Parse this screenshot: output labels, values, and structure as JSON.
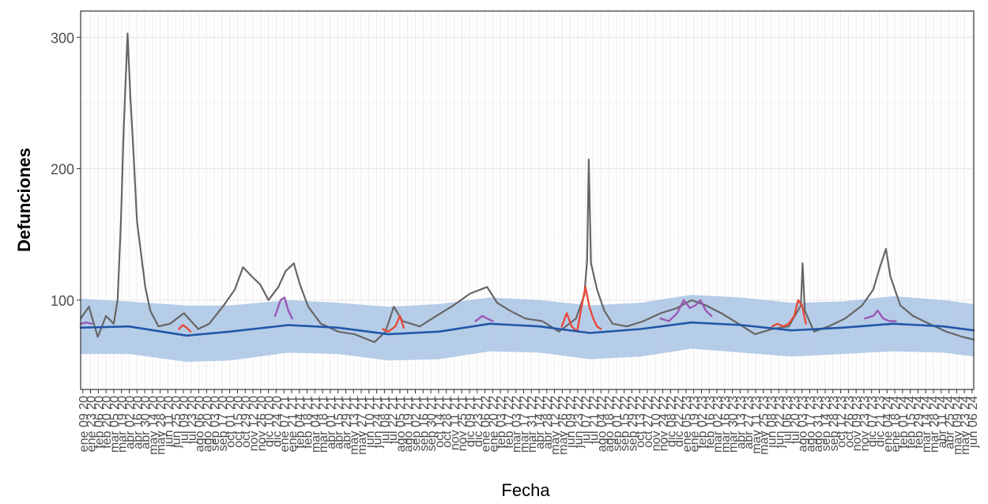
{
  "chart_data": {
    "type": "line",
    "title": "",
    "xlabel": "Fecha",
    "ylabel": "Defunciones",
    "x_range": [
      "2020-01-05",
      "2024-06-09"
    ],
    "ylim": [
      32,
      320
    ],
    "y_ticks": [
      100,
      200,
      300
    ],
    "x_tick_labels": [
      "ene 09 20",
      "ene 23 20",
      "feb 06 20",
      "feb 20 20",
      "mar 05 20",
      "mar 19 20",
      "abr 02 20",
      "abr 16 20",
      "abr 30 20",
      "may 14 20",
      "may 28 20",
      "jun 11 20",
      "jun 25 20",
      "jul 09 20",
      "jul 23 20",
      "ago 06 20",
      "ago 20 20",
      "sep 03 20",
      "sep 17 20",
      "oct 01 20",
      "oct 15 20",
      "oct 29 20",
      "nov 12 20",
      "nov 26 20",
      "dic 10 20",
      "dic 24 20",
      "ene 07 21",
      "ene 21 21",
      "feb 04 21",
      "feb 18 21",
      "mar 04 21",
      "mar 18 21",
      "abr 01 21",
      "abr 15 21",
      "abr 29 21",
      "may 13 21",
      "may 27 21",
      "jun 10 21",
      "jun 24 21",
      "jul 08 21",
      "jul 22 21",
      "ago 05 21",
      "ago 19 21",
      "sep 02 21",
      "sep 16 21",
      "sep 30 21",
      "oct 14 21",
      "oct 28 21",
      "nov 11 21",
      "nov 25 21",
      "dic 09 21",
      "dic 23 21",
      "ene 06 22",
      "ene 20 22",
      "feb 03 22",
      "feb 17 22",
      "mar 03 22",
      "mar 17 22",
      "mar 31 22",
      "abr 14 22",
      "abr 28 22",
      "may 12 22",
      "may 26 22",
      "jun 09 22",
      "jun 23 22",
      "jul 07 22",
      "jul 21 22",
      "ago 04 22",
      "ago 18 22",
      "sep 01 22",
      "sep 15 22",
      "sep 29 22",
      "oct 13 22",
      "oct 27 22",
      "nov 10 22",
      "nov 24 22",
      "dic 08 22",
      "dic 22 22",
      "ene 05 23",
      "ene 19 23",
      "feb 02 23",
      "feb 16 23",
      "mar 02 23",
      "mar 16 23",
      "mar 30 23",
      "abr 13 23",
      "abr 27 23",
      "may 11 23",
      "may 25 23",
      "jun 08 23",
      "jun 22 23",
      "jul 06 23",
      "jul 20 23",
      "ago 03 23",
      "ago 17 23",
      "ago 31 23",
      "sep 14 23",
      "sep 28 23",
      "oct 12 23",
      "oct 26 23",
      "nov 09 23",
      "nov 23 23",
      "dic 07 23",
      "dic 21 23",
      "ene 04 24",
      "ene 18 24",
      "feb 01 24",
      "feb 15 24",
      "feb 29 24",
      "mar 14 24",
      "mar 28 24",
      "abr 11 24",
      "abr 25 24",
      "may 09 24",
      "may 23 24",
      "jun 06 24"
    ],
    "grid": true,
    "legend": "none",
    "series": [
      {
        "role": "observed",
        "color": "#666666",
        "points": [
          [
            "2020-01-05",
            86
          ],
          [
            "2020-01-20",
            95
          ],
          [
            "2020-02-05",
            72
          ],
          [
            "2020-02-20",
            88
          ],
          [
            "2020-03-05",
            82
          ],
          [
            "2020-03-12",
            100
          ],
          [
            "2020-03-18",
            160
          ],
          [
            "2020-03-23",
            230
          ],
          [
            "2020-03-27",
            272
          ],
          [
            "2020-03-30",
            303
          ],
          [
            "2020-04-04",
            255
          ],
          [
            "2020-04-10",
            210
          ],
          [
            "2020-04-16",
            160
          ],
          [
            "2020-04-22",
            140
          ],
          [
            "2020-05-01",
            110
          ],
          [
            "2020-05-10",
            92
          ],
          [
            "2020-05-25",
            80
          ],
          [
            "2020-06-15",
            82
          ],
          [
            "2020-07-10",
            90
          ],
          [
            "2020-08-05",
            78
          ],
          [
            "2020-08-25",
            82
          ],
          [
            "2020-09-20",
            96
          ],
          [
            "2020-10-10",
            108
          ],
          [
            "2020-10-25",
            125
          ],
          [
            "2020-11-10",
            118
          ],
          [
            "2020-11-25",
            112
          ],
          [
            "2020-12-10",
            100
          ],
          [
            "2020-12-28",
            110
          ],
          [
            "2021-01-10",
            122
          ],
          [
            "2021-01-25",
            128
          ],
          [
            "2021-02-05",
            112
          ],
          [
            "2021-02-20",
            95
          ],
          [
            "2021-03-15",
            82
          ],
          [
            "2021-04-15",
            76
          ],
          [
            "2021-05-15",
            74
          ],
          [
            "2021-06-20",
            68
          ],
          [
            "2021-07-10",
            76
          ],
          [
            "2021-07-25",
            95
          ],
          [
            "2021-08-10",
            84
          ],
          [
            "2021-09-10",
            80
          ],
          [
            "2021-10-10",
            88
          ],
          [
            "2021-11-10",
            96
          ],
          [
            "2021-12-10",
            105
          ],
          [
            "2022-01-10",
            110
          ],
          [
            "2022-01-28",
            98
          ],
          [
            "2022-02-20",
            92
          ],
          [
            "2022-03-20",
            86
          ],
          [
            "2022-04-20",
            84
          ],
          [
            "2022-05-20",
            76
          ],
          [
            "2022-06-20",
            86
          ],
          [
            "2022-07-05",
            104
          ],
          [
            "2022-07-10",
            130
          ],
          [
            "2022-07-13",
            207
          ],
          [
            "2022-07-17",
            128
          ],
          [
            "2022-07-28",
            108
          ],
          [
            "2022-08-10",
            92
          ],
          [
            "2022-08-25",
            82
          ],
          [
            "2022-09-20",
            80
          ],
          [
            "2022-10-20",
            84
          ],
          [
            "2022-11-20",
            90
          ],
          [
            "2022-12-20",
            94
          ],
          [
            "2023-01-15",
            100
          ],
          [
            "2023-02-10",
            96
          ],
          [
            "2023-03-10",
            90
          ],
          [
            "2023-04-10",
            82
          ],
          [
            "2023-05-10",
            74
          ],
          [
            "2023-06-10",
            78
          ],
          [
            "2023-07-10",
            80
          ],
          [
            "2023-08-01",
            96
          ],
          [
            "2023-08-04",
            128
          ],
          [
            "2023-08-08",
            92
          ],
          [
            "2023-08-25",
            76
          ],
          [
            "2023-09-20",
            80
          ],
          [
            "2023-10-20",
            86
          ],
          [
            "2023-11-20",
            96
          ],
          [
            "2023-12-10",
            108
          ],
          [
            "2023-12-22",
            125
          ],
          [
            "2024-01-02",
            139
          ],
          [
            "2024-01-10",
            118
          ],
          [
            "2024-01-28",
            96
          ],
          [
            "2024-02-20",
            88
          ],
          [
            "2024-03-20",
            82
          ],
          [
            "2024-04-20",
            76
          ],
          [
            "2024-05-20",
            72
          ],
          [
            "2024-06-09",
            70
          ]
        ]
      },
      {
        "role": "expected",
        "color": "#2257a8",
        "points": [
          [
            "2020-01-05",
            79
          ],
          [
            "2020-04-01",
            80
          ],
          [
            "2020-07-15",
            73
          ],
          [
            "2020-10-01",
            76
          ],
          [
            "2021-01-15",
            81
          ],
          [
            "2021-04-15",
            79
          ],
          [
            "2021-07-15",
            74
          ],
          [
            "2021-10-15",
            76
          ],
          [
            "2022-01-15",
            82
          ],
          [
            "2022-04-15",
            80
          ],
          [
            "2022-07-15",
            75
          ],
          [
            "2022-10-15",
            78
          ],
          [
            "2023-01-15",
            83
          ],
          [
            "2023-04-15",
            81
          ],
          [
            "2023-07-15",
            77
          ],
          [
            "2023-10-15",
            79
          ],
          [
            "2024-01-15",
            82
          ],
          [
            "2024-04-15",
            80
          ],
          [
            "2024-06-09",
            77
          ]
        ]
      }
    ],
    "band": {
      "role": "expected-range",
      "color": "#a9c4e4",
      "points": [
        [
          "2020-01-05",
          59,
          101
        ],
        [
          "2020-04-01",
          59,
          99
        ],
        [
          "2020-07-15",
          53,
          96
        ],
        [
          "2020-10-01",
          54,
          96
        ],
        [
          "2021-01-15",
          60,
          100
        ],
        [
          "2021-04-15",
          59,
          98
        ],
        [
          "2021-07-15",
          54,
          95
        ],
        [
          "2021-10-15",
          55,
          97
        ],
        [
          "2022-01-15",
          61,
          102
        ],
        [
          "2022-04-15",
          60,
          100
        ],
        [
          "2022-07-15",
          55,
          96
        ],
        [
          "2022-10-15",
          57,
          98
        ],
        [
          "2023-01-15",
          63,
          104
        ],
        [
          "2023-04-15",
          60,
          102
        ],
        [
          "2023-07-15",
          57,
          98
        ],
        [
          "2023-10-15",
          59,
          99
        ],
        [
          "2024-01-15",
          61,
          103
        ],
        [
          "2024-04-15",
          60,
          100
        ],
        [
          "2024-06-09",
          57,
          97
        ]
      ]
    },
    "highlights": [
      {
        "color": "#e8493a",
        "segments": [
          [
            [
              "2020-07-01",
              78
            ],
            [
              "2020-07-08",
              81
            ],
            [
              "2020-07-15",
              79
            ],
            [
              "2020-07-22",
              76
            ]
          ],
          [
            [
              "2021-07-05",
              78
            ],
            [
              "2021-07-15",
              76
            ],
            [
              "2021-07-28",
              80
            ],
            [
              "2021-08-05",
              88
            ],
            [
              "2021-08-12",
              79
            ]
          ],
          [
            [
              "2022-05-25",
              80
            ],
            [
              "2022-06-03",
              90
            ],
            [
              "2022-06-12",
              80
            ],
            [
              "2022-06-22",
              76
            ],
            [
              "2022-06-30",
              95
            ],
            [
              "2022-07-07",
              110
            ],
            [
              "2022-07-14",
              95
            ],
            [
              "2022-07-21",
              86
            ],
            [
              "2022-07-28",
              80
            ],
            [
              "2022-08-04",
              78
            ]
          ],
          [
            [
              "2023-06-10",
              80
            ],
            [
              "2023-06-20",
              82
            ],
            [
              "2023-06-30",
              80
            ],
            [
              "2023-07-10",
              82
            ],
            [
              "2023-07-20",
              88
            ],
            [
              "2023-07-27",
              100
            ],
            [
              "2023-08-03",
              96
            ],
            [
              "2023-08-10",
              82
            ]
          ]
        ]
      },
      {
        "color": "#9b59b6",
        "segments": [
          [
            [
              "2020-01-05",
              82
            ],
            [
              "2020-01-15",
              83
            ],
            [
              "2020-01-25",
              82
            ]
          ],
          [
            [
              "2020-12-22",
              88
            ],
            [
              "2021-01-01",
              100
            ],
            [
              "2021-01-08",
              102
            ],
            [
              "2021-01-15",
              92
            ],
            [
              "2021-01-22",
              86
            ]
          ],
          [
            [
              "2021-12-20",
              84
            ],
            [
              "2022-01-01",
              88
            ],
            [
              "2022-01-10",
              86
            ],
            [
              "2022-01-20",
              84
            ]
          ],
          [
            [
              "2022-11-20",
              86
            ],
            [
              "2022-12-05",
              84
            ],
            [
              "2022-12-20",
              90
            ],
            [
              "2023-01-01",
              100
            ],
            [
              "2023-01-12",
              94
            ],
            [
              "2023-01-22",
              96
            ],
            [
              "2023-01-31",
              100
            ],
            [
              "2023-02-10",
              92
            ],
            [
              "2023-02-20",
              88
            ]
          ],
          [
            [
              "2023-11-25",
              86
            ],
            [
              "2023-12-10",
              88
            ],
            [
              "2023-12-18",
              92
            ],
            [
              "2023-12-28",
              86
            ],
            [
              "2024-01-08",
              84
            ],
            [
              "2024-01-20",
              84
            ]
          ]
        ]
      }
    ]
  }
}
